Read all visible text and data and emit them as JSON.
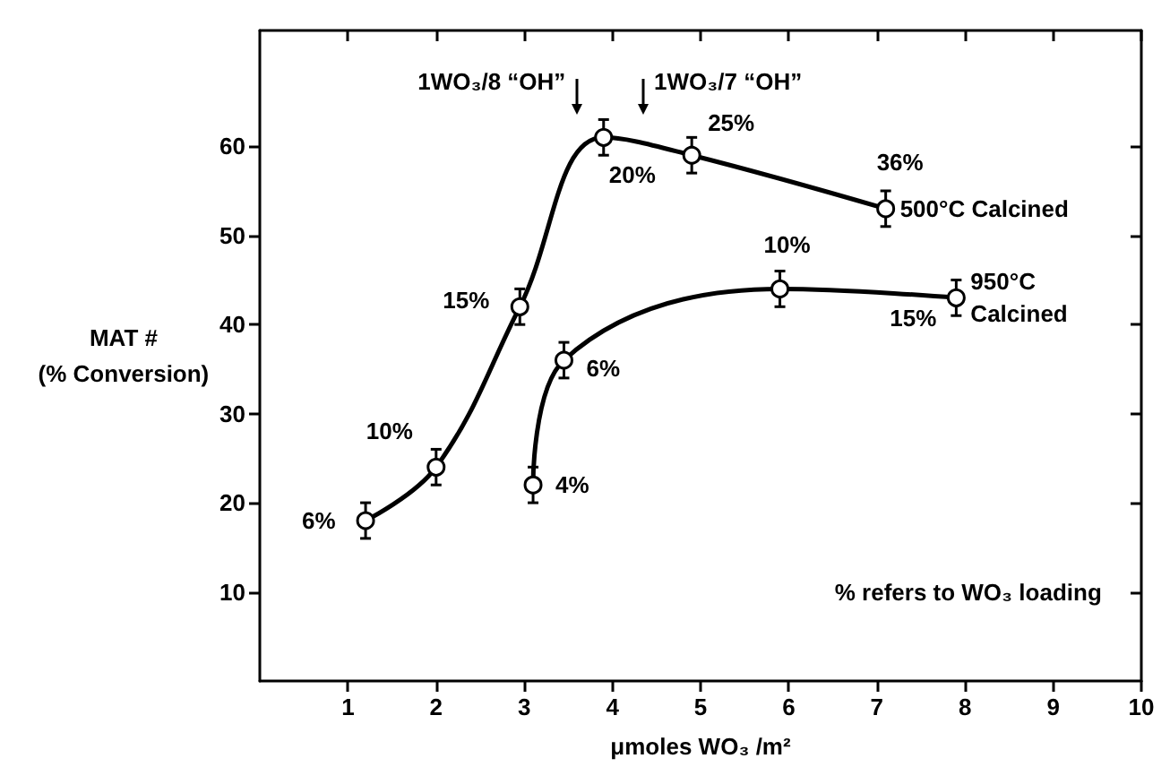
{
  "chart_data": {
    "type": "line",
    "xlabel": "μmoles WO₃ /m²",
    "ylabel": "MAT #\n(% Conversion)",
    "xlim": [
      0,
      10
    ],
    "xticks": [
      1,
      2,
      3,
      4,
      5,
      6,
      7,
      8,
      9,
      10
    ],
    "ylim": [
      0,
      73
    ],
    "yticks": [
      10,
      20,
      30,
      40,
      50,
      60
    ],
    "grid": false,
    "marker": "circle",
    "line_style": "solid",
    "series": [
      {
        "name": "500°C Calcined",
        "color": "#000000",
        "x": [
          1.2,
          2.0,
          2.95,
          3.9,
          4.9,
          7.1
        ],
        "values": [
          18,
          24,
          42,
          61,
          59,
          53
        ],
        "errors": [
          2,
          2,
          2,
          2,
          2,
          2
        ]
      },
      {
        "name": "950°C\nCalcined",
        "color": "#000000",
        "x": [
          3.1,
          3.45,
          5.9,
          7.9
        ],
        "values": [
          22,
          36,
          44,
          43
        ],
        "errors": [
          2,
          2,
          2,
          2
        ]
      }
    ],
    "annotations": [
      "1WO₃/8 “OH”",
      "1WO₃/7 “OH”",
      "% refers to WO₃ loading",
      {
        "text": "6%",
        "x": 1.2,
        "y": 18
      },
      {
        "text": "10%",
        "x": 2.0,
        "y": 24
      },
      {
        "text": "15%",
        "x": 2.95,
        "y": 42
      },
      {
        "text": "20%",
        "x": 3.9,
        "y": 61
      },
      {
        "text": "25%",
        "x": 4.9,
        "y": 59
      },
      {
        "text": "36%",
        "x": 7.1,
        "y": 53
      },
      {
        "text": "4%",
        "x": 3.1,
        "y": 22
      },
      {
        "text": "6%",
        "x": 3.45,
        "y": 36
      },
      {
        "text": "10%",
        "x": 5.9,
        "y": 44
      },
      {
        "text": "15%",
        "x": 7.9,
        "y": 43
      }
    ]
  }
}
